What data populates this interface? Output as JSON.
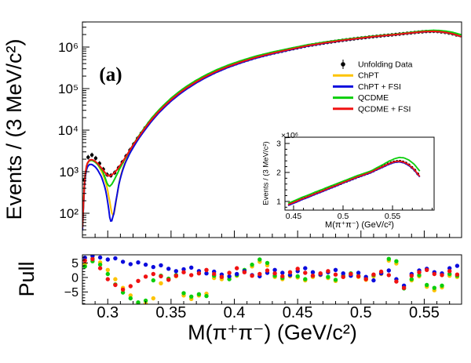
{
  "figure": {
    "panel_label": "(a)",
    "background": "#ffffff",
    "axis_color": "#000000"
  },
  "legend": {
    "items": [
      {
        "label": "Unfolding Data",
        "type": "marker",
        "color": "#000000"
      },
      {
        "label": "ChPT",
        "type": "line",
        "color": "#fdc300"
      },
      {
        "label": "ChPT + FSI",
        "type": "line",
        "color": "#0b0bdd"
      },
      {
        "label": "QCDME",
        "type": "line",
        "color": "#0bce0b"
      },
      {
        "label": "QCDME + FSI",
        "type": "line",
        "color": "#f01212"
      }
    ]
  },
  "chart_data": [
    {
      "id": "main-spectrum",
      "type": "line",
      "ylabel": "Events / (3 MeV/c²)",
      "xlabel": "",
      "ylog": true,
      "xlim": [
        0.28,
        0.5795
      ],
      "ylim": [
        26,
        4020000
      ],
      "xticks": [
        0.3,
        0.35,
        0.4,
        0.45,
        0.5,
        0.55
      ],
      "ytick_exponents": [
        2,
        3,
        4,
        5,
        6
      ],
      "base_curve": [
        [
          0.2802,
          45
        ],
        [
          0.2812,
          380
        ],
        [
          0.2822,
          900
        ],
        [
          0.2835,
          1550
        ],
        [
          0.2855,
          1900
        ],
        [
          0.2875,
          1960
        ],
        [
          0.29,
          1800
        ],
        [
          0.2925,
          1530
        ],
        [
          0.295,
          1230
        ],
        [
          0.2975,
          980
        ],
        [
          0.2995,
          830
        ],
        [
          0.301,
          780
        ],
        [
          0.303,
          830
        ],
        [
          0.3055,
          960
        ],
        [
          0.308,
          1180
        ],
        [
          0.3105,
          1520
        ],
        [
          0.313,
          2000
        ],
        [
          0.316,
          2800
        ],
        [
          0.319,
          3900
        ],
        [
          0.322,
          5400
        ],
        [
          0.325,
          7300
        ],
        [
          0.328,
          9800
        ],
        [
          0.331,
          13000
        ],
        [
          0.335,
          18500
        ],
        [
          0.34,
          27500
        ],
        [
          0.345,
          39000
        ],
        [
          0.35,
          54000
        ],
        [
          0.356,
          76000
        ],
        [
          0.362,
          103000
        ],
        [
          0.37,
          147000
        ],
        [
          0.378,
          200000
        ],
        [
          0.386,
          262000
        ],
        [
          0.395,
          340000
        ],
        [
          0.405,
          435000
        ],
        [
          0.417,
          565000
        ],
        [
          0.43,
          710000
        ],
        [
          0.444,
          880000
        ],
        [
          0.458,
          1080000
        ],
        [
          0.472,
          1270000
        ],
        [
          0.486,
          1460000
        ],
        [
          0.5,
          1650000
        ],
        [
          0.514,
          1840000
        ],
        [
          0.528,
          2010000
        ],
        [
          0.534,
          2110000
        ],
        [
          0.54,
          2200000
        ],
        [
          0.546,
          2300000
        ],
        [
          0.552,
          2370000
        ],
        [
          0.557,
          2390000
        ],
        [
          0.562,
          2350000
        ],
        [
          0.567,
          2250000
        ],
        [
          0.572,
          2100000
        ],
        [
          0.576,
          1930000
        ],
        [
          0.579,
          1800000
        ]
      ],
      "series": [
        {
          "name": "ChPT",
          "color": "#fdc300",
          "ratio_anchors": [
            [
              0.28,
              0.98
            ],
            [
              0.292,
              0.95
            ],
            [
              0.296,
              0.8
            ],
            [
              0.299,
              0.55
            ],
            [
              0.301,
              0.3
            ],
            [
              0.3028,
              0.13
            ],
            [
              0.3045,
              0.095
            ],
            [
              0.306,
              0.14
            ],
            [
              0.308,
              0.3
            ],
            [
              0.31,
              0.52
            ],
            [
              0.3125,
              0.72
            ],
            [
              0.316,
              0.85
            ],
            [
              0.32,
              0.92
            ],
            [
              0.33,
              0.95
            ],
            [
              0.36,
              0.95
            ],
            [
              0.42,
              0.98
            ],
            [
              0.5,
              0.99
            ],
            [
              0.579,
              0.98
            ]
          ]
        },
        {
          "name": "ChPT + FSI",
          "color": "#0b0bdd",
          "ratio_anchors": [
            [
              0.28,
              0.85
            ],
            [
              0.286,
              0.78
            ],
            [
              0.291,
              0.72
            ],
            [
              0.295,
              0.62
            ],
            [
              0.298,
              0.42
            ],
            [
              0.3,
              0.22
            ],
            [
              0.3018,
              0.085
            ],
            [
              0.303,
              0.075
            ],
            [
              0.305,
              0.11
            ],
            [
              0.307,
              0.22
            ],
            [
              0.309,
              0.4
            ],
            [
              0.3115,
              0.6
            ],
            [
              0.314,
              0.75
            ],
            [
              0.318,
              0.85
            ],
            [
              0.324,
              0.9
            ],
            [
              0.34,
              0.92
            ],
            [
              0.38,
              0.94
            ],
            [
              0.44,
              0.97
            ],
            [
              0.5,
              0.99
            ],
            [
              0.579,
              0.99
            ]
          ]
        },
        {
          "name": "QCDME",
          "color": "#0bce0b",
          "ratio_anchors": [
            [
              0.28,
              1.0
            ],
            [
              0.296,
              0.92
            ],
            [
              0.2995,
              0.62
            ],
            [
              0.3015,
              0.56
            ],
            [
              0.3035,
              0.6
            ],
            [
              0.306,
              0.72
            ],
            [
              0.309,
              0.85
            ],
            [
              0.313,
              0.95
            ],
            [
              0.32,
              1.02
            ],
            [
              0.335,
              1.08
            ],
            [
              0.36,
              1.09
            ],
            [
              0.4,
              1.08
            ],
            [
              0.46,
              1.05
            ],
            [
              0.5,
              1.03
            ],
            [
              0.53,
              1.02
            ],
            [
              0.55,
              1.04
            ],
            [
              0.565,
              1.07
            ],
            [
              0.579,
              1.1
            ]
          ]
        },
        {
          "name": "QCDME + FSI",
          "color": "#f01212",
          "ratio_anchors": [
            [
              0.28,
              1.0
            ],
            [
              0.579,
              1.0
            ]
          ]
        }
      ],
      "data_markers": {
        "name": "Unfolding Data",
        "color": "#000000",
        "x_start": 0.2815,
        "x_step": 0.003,
        "x_end": 0.5775,
        "ratio_anchors": [
          [
            0.2815,
            1.27
          ],
          [
            0.288,
            1.24
          ],
          [
            0.293,
            1.18
          ],
          [
            0.297,
            1.1
          ],
          [
            0.3,
            1.02
          ],
          [
            0.304,
            0.98
          ],
          [
            0.31,
            1.0
          ],
          [
            0.579,
            1.0
          ]
        ]
      }
    },
    {
      "id": "inset-linear",
      "type": "line",
      "ylabel": "Events / (3 MeV/c²)",
      "xlabel": "M(π⁺π⁻) (GeV/c²)",
      "scale_label": "×10⁶",
      "ylog": false,
      "xlim": [
        0.4413,
        0.592
      ],
      "ylim": [
        700000,
        3216000
      ],
      "xticks": [
        0.45,
        0.5,
        0.55
      ],
      "yticks": [
        1000000,
        2000000,
        3000000
      ],
      "ytick_labels": [
        "1",
        "2",
        "3"
      ],
      "data_x_start": 0.4465,
      "data_x_step": 0.003,
      "data_x_end": 0.5775
    },
    {
      "id": "pull-panel",
      "type": "scatter",
      "ylabel": "Pull",
      "xlabel": "M(π⁺π⁻) (GeV/c²)",
      "xlim": [
        0.28,
        0.5795
      ],
      "ylim": [
        -9.22,
        7.81
      ],
      "xticks": [
        0.3,
        0.35,
        0.4,
        0.45,
        0.5,
        0.55
      ],
      "yticks": [
        -5,
        0,
        5
      ],
      "x_start": 0.282,
      "x_step": 0.006,
      "series": [
        {
          "name": "ChPT",
          "color": "#fdc300",
          "values": [
            4.6,
            6.6,
            5.2,
            2.6,
            -0.6,
            -3.6,
            -6.2,
            -8.8,
            -9.0,
            -7.2,
            -2.0,
            -0.8,
            0.4,
            -6.2,
            -7.4,
            -6.2,
            -5.6,
            -0.2,
            -0.6,
            0.2,
            0.6,
            2.0,
            3.8,
            5.4,
            4.2,
            0.2,
            -0.6,
            0.4,
            0.0,
            -1.0,
            0.2,
            0.8,
            -0.2,
            -1.2,
            0.2,
            1.0,
            0.2,
            -0.8,
            0.4,
            1.2,
            5.8,
            4.8,
            -3.2,
            -1.0,
            0.4,
            -3.2,
            -4.4,
            -3.4,
            0.6,
            0.2
          ]
        },
        {
          "name": "QCDME",
          "color": "#0bce0b",
          "values": [
            3.8,
            5.6,
            4.4,
            1.2,
            -2.4,
            -5.2,
            -7.2,
            -8.6,
            -8.0,
            -1.0,
            0.6,
            -0.4,
            0.8,
            -5.4,
            -6.6,
            -5.8,
            -6.4,
            0.6,
            0.2,
            -0.6,
            0.8,
            2.6,
            4.4,
            6.2,
            5.0,
            0.6,
            -0.2,
            0.8,
            0.4,
            -0.6,
            0.6,
            1.2,
            0.2,
            -0.8,
            0.6,
            1.4,
            0.6,
            -0.4,
            0.8,
            1.6,
            6.4,
            5.6,
            -3.8,
            -0.6,
            0.8,
            -2.6,
            -3.6,
            -2.8,
            1.2,
            0.6
          ]
        },
        {
          "name": "ChPT + FSI",
          "color": "#0b0bdd",
          "values": [
            6.8,
            7.4,
            6.9,
            6.2,
            6.6,
            5.4,
            4.6,
            5.2,
            4.4,
            3.6,
            4.2,
            3.0,
            2.2,
            2.8,
            3.4,
            2.2,
            1.4,
            2.0,
            1.0,
            0.4,
            1.2,
            2.2,
            0.8,
            0.4,
            1.6,
            2.6,
            1.6,
            0.8,
            2.2,
            3.2,
            1.8,
            1.0,
            1.8,
            2.6,
            1.4,
            0.6,
            1.6,
            0.2,
            -1.0,
            1.4,
            2.4,
            -0.6,
            -2.8,
            1.2,
            2.4,
            3.0,
            1.8,
            1.4,
            3.2,
            4.0
          ]
        },
        {
          "name": "QCDME + FSI",
          "color": "#f01212",
          "values": [
            5.8,
            6.3,
            3.2,
            -0.6,
            -2.6,
            -4.2,
            -3.0,
            -1.2,
            0.3,
            1.2,
            0.4,
            -0.8,
            0.6,
            1.8,
            0.8,
            1.4,
            2.6,
            1.2,
            0.2,
            1.6,
            3.2,
            1.8,
            0.6,
            1.2,
            2.4,
            1.4,
            0.4,
            1.8,
            3.0,
            1.6,
            0.6,
            1.4,
            2.2,
            1.0,
            0.2,
            1.2,
            0.4,
            -0.6,
            1.0,
            2.0,
            0.8,
            -1.4,
            -3.6,
            0.6,
            1.8,
            2.6,
            1.2,
            0.8,
            2.2,
            1.0
          ]
        }
      ]
    }
  ]
}
